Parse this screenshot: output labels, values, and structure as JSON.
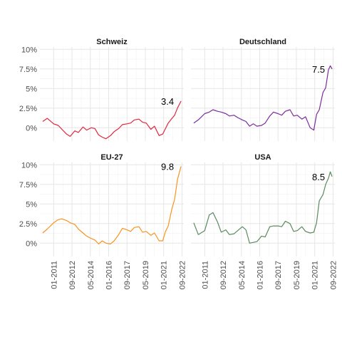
{
  "chart_data": [
    {
      "type": "line",
      "title": "Schweiz",
      "color": "#e2263b",
      "end_label": "3.4",
      "y_ticks": [
        "0%",
        "2.5%",
        "5%",
        "7.5%",
        "10%"
      ],
      "x_ticks": [
        "01-2011",
        "09-2012",
        "05-2014",
        "01-2016",
        "09-2017",
        "05-2019",
        "01-2021",
        "09-2022"
      ],
      "ylim": [
        -1.7,
        10.3
      ],
      "x": [
        "2010-01",
        "2010-06",
        "2011-01",
        "2011-06",
        "2011-10",
        "2012-03",
        "2012-07",
        "2012-12",
        "2013-04",
        "2013-09",
        "2014-01",
        "2014-06",
        "2014-10",
        "2015-02",
        "2015-06",
        "2015-10",
        "2016-03",
        "2016-07",
        "2016-12",
        "2017-04",
        "2017-09",
        "2018-01",
        "2018-05",
        "2018-10",
        "2019-02",
        "2019-06",
        "2019-11",
        "2020-03",
        "2020-08",
        "2020-12",
        "2021-03",
        "2021-06",
        "2021-10",
        "2022-01",
        "2022-04",
        "2022-08"
      ],
      "values": [
        0.8,
        1.2,
        0.5,
        0.3,
        -0.2,
        -0.8,
        -1.1,
        -0.4,
        -0.6,
        0.1,
        -0.3,
        0.0,
        -0.1,
        -0.9,
        -1.2,
        -1.4,
        -1.0,
        -0.5,
        -0.1,
        0.4,
        0.5,
        0.6,
        1.0,
        1.1,
        0.7,
        0.6,
        -0.2,
        0.2,
        -1.0,
        -0.8,
        -0.1,
        0.6,
        1.2,
        1.6,
        2.5,
        3.4
      ]
    },
    {
      "type": "line",
      "title": "Deutschland",
      "color": "#7b2d9c",
      "end_label": "7.5",
      "y_ticks": [
        "0%",
        "2.5%",
        "5%",
        "7.5%",
        "10%"
      ],
      "x_ticks": [
        "01-2011",
        "09-2012",
        "05-2014",
        "01-2016",
        "09-2017",
        "05-2019",
        "01-2021",
        "09-2022"
      ],
      "ylim": [
        -1.7,
        10.3
      ],
      "x": [
        "2010-01",
        "2010-06",
        "2011-01",
        "2011-06",
        "2011-10",
        "2012-03",
        "2012-07",
        "2012-12",
        "2013-04",
        "2013-09",
        "2014-01",
        "2014-06",
        "2014-10",
        "2015-02",
        "2015-06",
        "2015-10",
        "2016-03",
        "2016-07",
        "2016-12",
        "2017-04",
        "2017-09",
        "2018-01",
        "2018-05",
        "2018-10",
        "2019-02",
        "2019-06",
        "2019-11",
        "2020-03",
        "2020-08",
        "2020-12",
        "2021-03",
        "2021-06",
        "2021-10",
        "2022-01",
        "2022-04",
        "2022-06",
        "2022-08"
      ],
      "values": [
        0.6,
        1.0,
        1.8,
        2.0,
        2.3,
        2.1,
        2.0,
        1.8,
        1.5,
        1.6,
        1.3,
        1.0,
        0.8,
        0.2,
        0.5,
        0.2,
        0.3,
        0.6,
        1.5,
        2.0,
        1.8,
        1.6,
        2.1,
        2.3,
        1.5,
        1.6,
        1.1,
        1.4,
        0.0,
        -0.3,
        1.7,
        2.3,
        4.5,
        5.1,
        7.4,
        7.9,
        7.5
      ]
    },
    {
      "type": "line",
      "title": "EU-27",
      "color": "#f7941d",
      "end_label": "9.8",
      "y_ticks": [
        "0%",
        "2.5%",
        "5%",
        "7.5%",
        "10%"
      ],
      "x_ticks": [
        "01-2011",
        "09-2012",
        "05-2014",
        "01-2016",
        "09-2017",
        "05-2019",
        "01-2021",
        "09-2022"
      ],
      "ylim": [
        -1.7,
        10.3
      ],
      "x": [
        "2010-01",
        "2010-06",
        "2011-01",
        "2011-06",
        "2011-10",
        "2012-03",
        "2012-07",
        "2012-12",
        "2013-04",
        "2013-09",
        "2014-01",
        "2014-06",
        "2014-10",
        "2015-02",
        "2015-06",
        "2015-10",
        "2016-03",
        "2016-07",
        "2016-12",
        "2017-04",
        "2017-09",
        "2018-01",
        "2018-05",
        "2018-10",
        "2019-02",
        "2019-06",
        "2019-11",
        "2020-03",
        "2020-08",
        "2020-12",
        "2021-03",
        "2021-06",
        "2021-10",
        "2022-01",
        "2022-04",
        "2022-08"
      ],
      "values": [
        1.3,
        1.8,
        2.6,
        3.0,
        3.1,
        2.9,
        2.6,
        2.4,
        1.8,
        1.3,
        0.9,
        0.6,
        0.4,
        -0.1,
        0.3,
        0.0,
        -0.1,
        0.3,
        1.1,
        1.9,
        1.7,
        1.5,
        2.0,
        2.1,
        1.4,
        1.5,
        1.0,
        1.3,
        0.3,
        0.3,
        1.5,
        2.2,
        4.4,
        5.6,
        8.1,
        9.8
      ]
    },
    {
      "type": "line",
      "title": "USA",
      "color": "#5a8a5e",
      "end_label": "8.5",
      "y_ticks": [
        "0%",
        "2.5%",
        "5%",
        "7.5%",
        "10%"
      ],
      "x_ticks": [
        "01-2011",
        "09-2012",
        "05-2014",
        "01-2016",
        "09-2017",
        "05-2019",
        "01-2021",
        "09-2022"
      ],
      "ylim": [
        -1.7,
        10.3
      ],
      "x": [
        "2010-01",
        "2010-06",
        "2011-01",
        "2011-06",
        "2011-10",
        "2012-03",
        "2012-07",
        "2012-12",
        "2013-04",
        "2013-09",
        "2014-01",
        "2014-06",
        "2014-10",
        "2015-02",
        "2015-06",
        "2015-10",
        "2016-03",
        "2016-07",
        "2016-12",
        "2017-04",
        "2017-09",
        "2018-01",
        "2018-05",
        "2018-10",
        "2019-02",
        "2019-06",
        "2019-11",
        "2020-03",
        "2020-08",
        "2020-12",
        "2021-03",
        "2021-06",
        "2021-10",
        "2022-01",
        "2022-04",
        "2022-06",
        "2022-08"
      ],
      "values": [
        2.6,
        1.1,
        1.6,
        3.6,
        3.9,
        2.7,
        1.4,
        1.7,
        1.1,
        1.2,
        1.6,
        2.1,
        1.7,
        0.0,
        0.1,
        0.2,
        0.9,
        0.8,
        2.1,
        2.2,
        2.2,
        2.1,
        2.8,
        2.5,
        1.5,
        1.6,
        2.1,
        1.5,
        1.3,
        1.4,
        2.6,
        5.4,
        6.2,
        7.5,
        8.3,
        9.1,
        8.5
      ]
    }
  ]
}
